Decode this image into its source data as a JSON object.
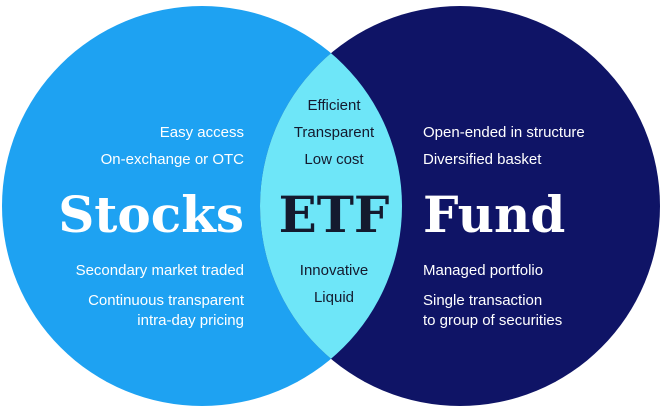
{
  "colors": {
    "stocks": "#1ea2f2",
    "fund": "#0f1466",
    "overlap": "#6ee6f8",
    "text_light": "#ffffff",
    "text_dark": "#141a2e"
  },
  "stocks": {
    "title": "Stocks",
    "features_top": [
      "Easy access",
      "On-exchange or OTC"
    ],
    "features_bottom": [
      "Secondary market traded",
      "Continuous transparent",
      "intra-day pricing"
    ]
  },
  "etf": {
    "title": "ETF",
    "features_top": [
      "Efficient",
      "Transparent",
      "Low cost"
    ],
    "features_bottom": [
      "Innovative",
      "Liquid"
    ]
  },
  "fund": {
    "title": "Fund",
    "features_top": [
      "Open-ended in structure",
      "Diversified basket"
    ],
    "features_bottom": [
      "Managed portfolio",
      "Single transaction",
      "to group of securities"
    ]
  }
}
